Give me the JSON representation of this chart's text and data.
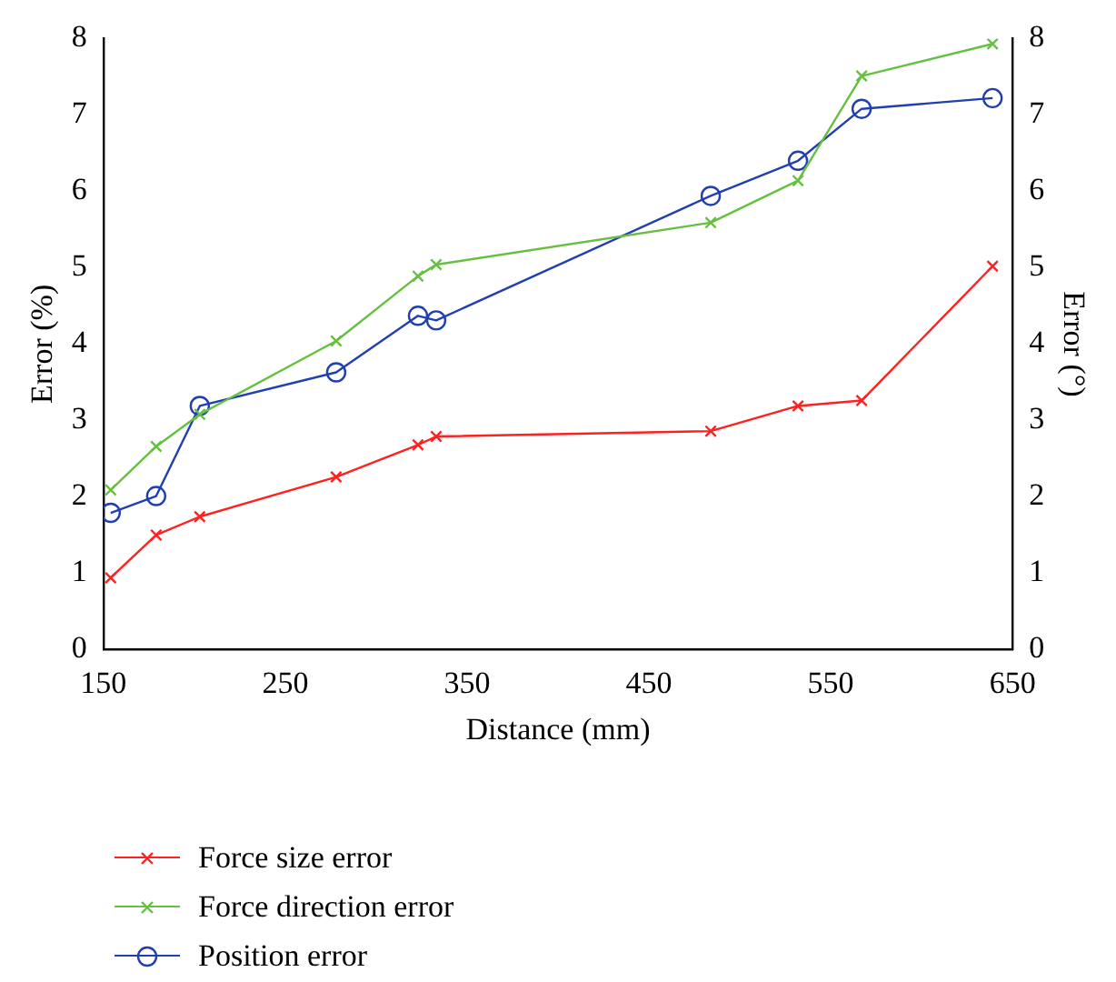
{
  "chart_data": {
    "type": "line",
    "xlabel": "Distance (mm)",
    "ylabel": "Error (%)",
    "y2label": "Error (°)",
    "xlim": [
      150,
      650
    ],
    "xticks": [
      150,
      250,
      350,
      450,
      550,
      650
    ],
    "ylim": [
      0,
      8
    ],
    "yticks": [
      0,
      1,
      2,
      3,
      4,
      5,
      6,
      7,
      8
    ],
    "y2lim": [
      0,
      8
    ],
    "y2ticks": [
      0,
      1,
      2,
      3,
      4,
      5,
      6,
      7,
      8
    ],
    "grid": false,
    "legend": "bottom",
    "line_style": "solid",
    "series": [
      {
        "name": "Force size error",
        "color": "#ff2020",
        "marker": "cross",
        "x": [
          154,
          179,
          203,
          278,
          323,
          333,
          484,
          532,
          567,
          639
        ],
        "values": [
          0.94,
          1.5,
          1.74,
          2.26,
          2.68,
          2.79,
          2.86,
          3.19,
          3.26,
          5.02
        ]
      },
      {
        "name": "Force direction error",
        "color": "#66c040",
        "marker": "cross",
        "x": [
          154,
          179,
          203,
          278,
          323,
          333,
          484,
          532,
          567,
          639
        ],
        "values": [
          2.09,
          2.66,
          3.08,
          4.04,
          4.89,
          5.04,
          5.59,
          6.14,
          7.51,
          7.93
        ]
      },
      {
        "name": "Position error",
        "color": "#2040b0",
        "marker": "circle",
        "x": [
          154,
          179,
          203,
          278,
          323,
          333,
          484,
          532,
          567,
          639
        ],
        "values": [
          1.79,
          2.01,
          3.19,
          3.63,
          4.37,
          4.31,
          5.94,
          6.4,
          7.08,
          7.22
        ]
      }
    ]
  }
}
